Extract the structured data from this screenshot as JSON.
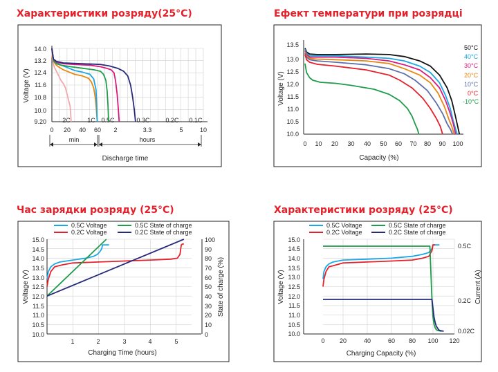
{
  "chart_data": [
    {
      "type": "line",
      "title": "Характеристики розряду(25°C)",
      "xlabel": "Discharge time",
      "ylabel": "Voltage (V)",
      "ylim": [
        9.2,
        14.0
      ],
      "yticks": [
        "14.0",
        "13.2",
        "12.4",
        "11.6",
        "10.8",
        "10.0",
        "9.20"
      ],
      "xticks_min": [
        "0",
        "20",
        "40",
        "60"
      ],
      "xticks_hours": [
        "2",
        "3.3",
        "5",
        "10"
      ],
      "axis_groups": [
        "min",
        "hours"
      ],
      "series": [
        {
          "name": "2C",
          "color": "#f2a8ad",
          "t": [
            0,
            0.5,
            1,
            2,
            3,
            5,
            8,
            10,
            12,
            15,
            18,
            20,
            22,
            24,
            25,
            25.3
          ],
          "v": [
            14.0,
            13.5,
            13.2,
            13.0,
            12.8,
            12.6,
            12.3,
            12.1,
            11.9,
            11.7,
            11.4,
            11.0,
            10.6,
            10.2,
            9.5,
            9.2
          ]
        },
        {
          "name": "1C",
          "color": "#e8860f",
          "t": [
            0,
            1,
            3,
            6,
            10,
            15,
            20,
            30,
            40,
            48,
            52,
            55,
            57,
            58.5,
            59.6
          ],
          "v": [
            14.0,
            13.4,
            13.1,
            12.9,
            12.75,
            12.6,
            12.5,
            12.3,
            12.2,
            12.05,
            11.8,
            11.4,
            10.8,
            10.0,
            9.2
          ]
        },
        {
          "name": "0.5C",
          "color": "#1aa7e6",
          "t": [
            0,
            2,
            5,
            10,
            20,
            30,
            40,
            50,
            55,
            58,
            59,
            59.6
          ],
          "v": [
            14.0,
            13.3,
            13.1,
            12.95,
            12.75,
            12.55,
            12.45,
            12.3,
            12.0,
            11.3,
            10.2,
            9.2
          ]
        },
        {
          "name": "0.3C",
          "color": "#1e9c4b",
          "t": [
            0,
            2,
            6,
            12,
            25,
            40,
            55,
            70,
            80,
            88,
            92,
            95,
            97
          ],
          "v": [
            14.0,
            13.2,
            13.0,
            12.9,
            12.8,
            12.7,
            12.6,
            12.5,
            12.3,
            11.9,
            11.2,
            10.2,
            9.2
          ]
        },
        {
          "name": "0.2C",
          "color": "#d8197e",
          "t": [
            0,
            2,
            6,
            15,
            30,
            50,
            70,
            90,
            105,
            115,
            120,
            124,
            127,
            129
          ],
          "v": [
            14.0,
            13.3,
            13.1,
            13.0,
            12.95,
            12.9,
            12.8,
            12.7,
            12.6,
            12.4,
            11.9,
            11.0,
            10.0,
            9.2
          ]
        },
        {
          "name": "0.1C",
          "color": "#262a78",
          "t": [
            0,
            2,
            6,
            15,
            40,
            70,
            100,
            125,
            140,
            150,
            157,
            162,
            166,
            169
          ],
          "v": [
            14.0,
            13.3,
            13.15,
            13.05,
            13.0,
            12.95,
            12.85,
            12.7,
            12.5,
            12.2,
            11.6,
            10.8,
            10.0,
            9.2
          ]
        }
      ]
    },
    {
      "type": "line",
      "title": "Ефект температури при розрядці",
      "xlabel": "Capacity (%)",
      "ylabel": "Voltage (V)",
      "xlim": [
        0,
        100
      ],
      "ylim": [
        10.0,
        13.5
      ],
      "yticks": [
        "13.5",
        "13.0",
        "12.5",
        "12.0",
        "11.5",
        "11.0",
        "10.5",
        "10.0"
      ],
      "xticks": [
        "0",
        "10",
        "20",
        "30",
        "40",
        "50",
        "60",
        "70",
        "80",
        "90",
        "100"
      ],
      "series": [
        {
          "name": "50°C",
          "color": "#111111",
          "x": [
            0,
            1,
            3,
            8,
            20,
            40,
            55,
            65,
            75,
            82,
            88,
            93,
            96,
            98,
            99.5,
            101
          ],
          "y": [
            13.35,
            13.2,
            13.12,
            13.1,
            13.1,
            13.12,
            13.1,
            13.02,
            12.85,
            12.65,
            12.3,
            11.8,
            11.3,
            10.8,
            10.4,
            10.0
          ]
        },
        {
          "name": "40°C",
          "color": "#1aa7e6",
          "x": [
            0,
            1,
            3,
            8,
            20,
            40,
            55,
            65,
            75,
            82,
            88,
            92,
            95,
            97,
            99.5
          ],
          "y": [
            13.3,
            13.15,
            13.05,
            13.05,
            13.05,
            13.0,
            12.95,
            12.85,
            12.65,
            12.4,
            12.0,
            11.5,
            11.0,
            10.5,
            10.0
          ]
        },
        {
          "name": "30°C",
          "color": "#d8197e",
          "x": [
            0,
            1,
            3,
            8,
            20,
            40,
            55,
            65,
            75,
            82,
            88,
            92,
            95,
            97,
            98.5
          ],
          "y": [
            13.25,
            13.1,
            13.0,
            13.0,
            13.0,
            12.95,
            12.85,
            12.7,
            12.5,
            12.2,
            11.8,
            11.3,
            10.8,
            10.4,
            10.0
          ]
        },
        {
          "name": "20°C",
          "color": "#e8860f",
          "x": [
            0,
            1,
            3,
            8,
            20,
            40,
            55,
            65,
            75,
            82,
            87,
            91,
            94,
            96,
            97.5
          ],
          "y": [
            13.2,
            13.05,
            12.95,
            12.92,
            12.9,
            12.85,
            12.75,
            12.55,
            12.3,
            12.0,
            11.6,
            11.1,
            10.6,
            10.3,
            10.0
          ]
        },
        {
          "name": "10°C",
          "color": "#5b6fa8",
          "x": [
            0,
            1,
            3,
            8,
            20,
            40,
            55,
            65,
            72,
            80,
            86,
            90,
            93,
            95,
            96.5
          ],
          "y": [
            13.15,
            13.0,
            12.9,
            12.85,
            12.8,
            12.7,
            12.55,
            12.35,
            12.1,
            11.7,
            11.2,
            10.8,
            10.4,
            10.2,
            10.0
          ]
        },
        {
          "name": "0°C",
          "color": "#e4202a",
          "x": [
            0,
            1,
            3,
            8,
            20,
            40,
            55,
            62,
            70,
            77,
            82,
            86,
            88.5,
            90
          ],
          "y": [
            13.1,
            12.9,
            12.8,
            12.72,
            12.65,
            12.5,
            12.3,
            12.1,
            11.8,
            11.4,
            11.0,
            10.6,
            10.3,
            10.0
          ]
        },
        {
          "name": "-10°C",
          "color": "#1e9c4b",
          "x": [
            0,
            1,
            3,
            5,
            10,
            20,
            30,
            45,
            55,
            62,
            67,
            70,
            72,
            73.5,
            74.5
          ],
          "y": [
            12.75,
            12.4,
            12.2,
            12.1,
            12.02,
            11.98,
            11.9,
            11.75,
            11.55,
            11.3,
            11.0,
            10.7,
            10.4,
            10.2,
            10.0
          ]
        }
      ]
    },
    {
      "type": "line",
      "title": "Час зарядки розряду (25°C)",
      "xlabel": "Charging Time (hours)",
      "ylabel": "Voltage (V)",
      "ylabel_right": "State of charge (%)",
      "xlim": [
        0,
        5.6
      ],
      "ylim": [
        10.0,
        15.0
      ],
      "ylim_right": [
        0,
        100
      ],
      "yticks": [
        "15.0",
        "14.5",
        "14.0",
        "13.5",
        "13.0",
        "12.5",
        "12.0",
        "11.5",
        "11.0",
        "10.5",
        "10.0"
      ],
      "yticks_right": [
        "100",
        "90",
        "80",
        "70",
        "60",
        "50",
        "40",
        "30",
        "20",
        "10",
        "0"
      ],
      "xticks": [
        "1",
        "2",
        "3",
        "4",
        "5"
      ],
      "legend": [
        "0.5C Voltage",
        "0.2C Voltage",
        "0.5C State of charge",
        "0.2C State of charge"
      ],
      "series": [
        {
          "name": "0.5C Voltage",
          "color": "#1aa7e6",
          "axis": "left",
          "x": [
            0,
            0.05,
            0.15,
            0.3,
            0.5,
            1.0,
            1.5,
            1.8,
            1.95,
            2.05,
            2.12,
            2.15,
            2.2,
            2.3,
            2.4
          ],
          "y": [
            12.9,
            13.3,
            13.55,
            13.7,
            13.8,
            13.9,
            14.0,
            14.1,
            14.2,
            14.35,
            14.5,
            14.7,
            14.7,
            14.7,
            14.7
          ]
        },
        {
          "name": "0.2C Voltage",
          "color": "#e4202a",
          "axis": "left",
          "x": [
            0,
            0.05,
            0.15,
            0.3,
            0.6,
            1.0,
            2.0,
            3.0,
            4.0,
            4.8,
            5.05,
            5.15,
            5.2,
            5.25,
            5.3
          ],
          "y": [
            12.5,
            12.9,
            13.3,
            13.55,
            13.65,
            13.75,
            13.8,
            13.85,
            13.9,
            13.95,
            14.0,
            14.2,
            14.7,
            14.75,
            14.75
          ]
        },
        {
          "name": "0.5C State of charge",
          "color": "#1e9c4b",
          "axis": "right",
          "x": [
            0,
            2.3
          ],
          "y": [
            40,
            100
          ]
        },
        {
          "name": "0.2C State of charge",
          "color": "#262a78",
          "axis": "right",
          "x": [
            0,
            5.3
          ],
          "y": [
            40,
            100
          ]
        }
      ]
    },
    {
      "type": "line",
      "title": "Характеристики розряду  (25°C)",
      "xlabel": "Charging Capacity (%)",
      "ylabel": "Voltage (V)",
      "ylabel_right": "Current (A)",
      "ylim": [
        10.0,
        15.0
      ],
      "yticks": [
        "15.0",
        "14.5",
        "14.0",
        "13.5",
        "13.0",
        "12.5",
        "12.0",
        "11.5",
        "11.0",
        "10.5",
        "10.0"
      ],
      "yticks_right": [
        "0.5C",
        "0.2C",
        "0.02C"
      ],
      "xticks": [
        "0",
        "20",
        "40",
        "60",
        "80",
        "100",
        "120"
      ],
      "legend": [
        "0.5C Voltage",
        "0.2C Voltage",
        "0.5C State of charge",
        "0.2C State of charge"
      ],
      "series": [
        {
          "name": "0.5C Voltage",
          "color": "#1aa7e6",
          "axis": "left",
          "x": [
            0,
            1,
            3,
            6,
            10,
            20,
            40,
            60,
            80,
            90,
            96,
            99,
            100,
            102,
            104,
            106
          ],
          "y": [
            12.9,
            13.3,
            13.55,
            13.7,
            13.8,
            13.9,
            13.95,
            14.0,
            14.1,
            14.2,
            14.3,
            14.5,
            14.7,
            14.7,
            14.7,
            14.7
          ]
        },
        {
          "name": "0.2C Voltage",
          "color": "#e4202a",
          "axis": "left",
          "x": [
            0,
            1,
            3,
            6,
            10,
            20,
            40,
            60,
            80,
            90,
            96,
            99,
            100,
            101,
            102
          ],
          "y": [
            12.5,
            12.9,
            13.3,
            13.55,
            13.6,
            13.75,
            13.8,
            13.85,
            13.9,
            14.0,
            14.1,
            14.4,
            14.7,
            14.7,
            14.7
          ]
        },
        {
          "name": "0.5C State of charge",
          "color": "#1e9c4b",
          "axis": "current",
          "x": [
            0,
            40,
            97,
            98,
            99,
            100,
            101,
            102,
            103,
            104,
            106,
            108
          ],
          "y": [
            0.5,
            0.5,
            0.5,
            0.35,
            0.2,
            0.1,
            0.06,
            0.04,
            0.03,
            0.025,
            0.022,
            0.02
          ]
        },
        {
          "name": "0.2C State of charge",
          "color": "#262a78",
          "axis": "current",
          "x": [
            0,
            40,
            99,
            100,
            101,
            102,
            103,
            104,
            105,
            106,
            108,
            110
          ],
          "y": [
            0.2,
            0.2,
            0.2,
            0.15,
            0.1,
            0.07,
            0.05,
            0.04,
            0.03,
            0.025,
            0.022,
            0.02
          ]
        }
      ]
    }
  ]
}
